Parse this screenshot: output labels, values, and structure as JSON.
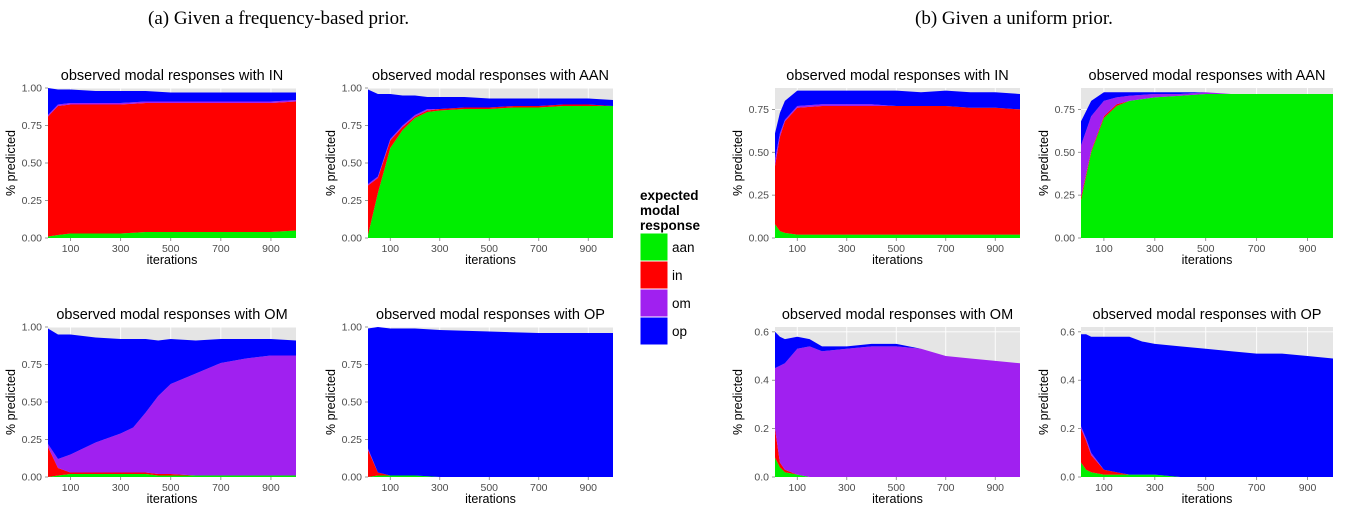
{
  "captions": {
    "a": "(a) Given a frequency-based prior.",
    "b": "(b) Given a uniform prior."
  },
  "legend": {
    "title_lines": [
      "expected",
      "modal",
      "response"
    ],
    "items": [
      {
        "label": "aan",
        "color": "#00ee00"
      },
      {
        "label": "in",
        "color": "#ff0000"
      },
      {
        "label": "om",
        "color": "#a020f0"
      },
      {
        "label": "op",
        "color": "#0000ff"
      }
    ]
  },
  "colors": {
    "panel_bg": "#e5e5e5",
    "grid": "#ffffff"
  },
  "chart_data": [
    {
      "type": "area",
      "title": "observed modal responses with IN",
      "xlabel": "iterations",
      "ylabel": "% predicted",
      "xlim": [
        10,
        1000
      ],
      "ylim": [
        0,
        1
      ],
      "xticks": [
        100,
        300,
        500,
        700,
        900
      ],
      "yticks": [
        "0.00",
        "0.25",
        "0.50",
        "0.75",
        "1.00"
      ],
      "x": [
        10,
        50,
        100,
        200,
        300,
        400,
        500,
        600,
        700,
        800,
        900,
        1000
      ],
      "series": [
        {
          "name": "aan",
          "values": [
            0.01,
            0.02,
            0.03,
            0.03,
            0.03,
            0.04,
            0.04,
            0.04,
            0.04,
            0.04,
            0.04,
            0.05
          ]
        },
        {
          "name": "in",
          "values": [
            0.8,
            0.86,
            0.86,
            0.86,
            0.86,
            0.86,
            0.86,
            0.86,
            0.86,
            0.86,
            0.86,
            0.86
          ]
        },
        {
          "name": "om",
          "values": [
            0.01,
            0.01,
            0.01,
            0.01,
            0.01,
            0.01,
            0.01,
            0.01,
            0.01,
            0.01,
            0.01,
            0.01
          ]
        },
        {
          "name": "op",
          "values": [
            0.18,
            0.1,
            0.09,
            0.08,
            0.08,
            0.07,
            0.06,
            0.06,
            0.06,
            0.06,
            0.06,
            0.05
          ]
        }
      ]
    },
    {
      "type": "area",
      "title": "observed modal responses with AAN",
      "xlabel": "iterations",
      "ylabel": "% predicted",
      "xlim": [
        10,
        1000
      ],
      "ylim": [
        0,
        1
      ],
      "xticks": [
        100,
        300,
        500,
        700,
        900
      ],
      "yticks": [
        "0.00",
        "0.25",
        "0.50",
        "0.75",
        "1.00"
      ],
      "x": [
        10,
        50,
        100,
        150,
        200,
        250,
        300,
        400,
        500,
        600,
        700,
        800,
        900,
        1000
      ],
      "series": [
        {
          "name": "aan",
          "values": [
            0.02,
            0.3,
            0.6,
            0.72,
            0.8,
            0.84,
            0.85,
            0.86,
            0.86,
            0.87,
            0.87,
            0.88,
            0.88,
            0.88
          ]
        },
        {
          "name": "in",
          "values": [
            0.33,
            0.1,
            0.05,
            0.02,
            0.01,
            0.01,
            0.01,
            0.01,
            0.01,
            0.01,
            0.01,
            0.01,
            0.01,
            0.0
          ]
        },
        {
          "name": "om",
          "values": [
            0.01,
            0.01,
            0.01,
            0.01,
            0.01,
            0.01,
            0.0,
            0.0,
            0.0,
            0.0,
            0.0,
            0.0,
            0.0,
            0.0
          ]
        },
        {
          "name": "op",
          "values": [
            0.63,
            0.55,
            0.3,
            0.2,
            0.13,
            0.08,
            0.08,
            0.07,
            0.06,
            0.05,
            0.05,
            0.04,
            0.04,
            0.04
          ]
        }
      ]
    },
    {
      "type": "area",
      "title": "observed modal responses with OM",
      "xlabel": "iterations",
      "ylabel": "% predicted",
      "xlim": [
        10,
        1000
      ],
      "ylim": [
        0,
        1
      ],
      "xticks": [
        100,
        300,
        500,
        700,
        900
      ],
      "yticks": [
        "0.00",
        "0.25",
        "0.50",
        "0.75",
        "1.00"
      ],
      "x": [
        10,
        50,
        100,
        200,
        300,
        350,
        400,
        450,
        500,
        600,
        700,
        800,
        900,
        1000
      ],
      "series": [
        {
          "name": "aan",
          "values": [
            0.0,
            0.01,
            0.02,
            0.02,
            0.02,
            0.02,
            0.02,
            0.01,
            0.01,
            0.01,
            0.01,
            0.01,
            0.01,
            0.01
          ]
        },
        {
          "name": "in",
          "values": [
            0.2,
            0.05,
            0.01,
            0.01,
            0.01,
            0.01,
            0.01,
            0.01,
            0.01,
            0.0,
            0.0,
            0.0,
            0.0,
            0.0
          ]
        },
        {
          "name": "om",
          "values": [
            0.02,
            0.06,
            0.12,
            0.2,
            0.26,
            0.3,
            0.4,
            0.52,
            0.6,
            0.68,
            0.75,
            0.78,
            0.8,
            0.8
          ]
        },
        {
          "name": "op",
          "values": [
            0.77,
            0.83,
            0.8,
            0.7,
            0.63,
            0.59,
            0.49,
            0.37,
            0.3,
            0.22,
            0.16,
            0.13,
            0.11,
            0.1
          ]
        }
      ]
    },
    {
      "type": "area",
      "title": "observed modal responses with OP",
      "xlabel": "iterations",
      "ylabel": "% predicted",
      "xlim": [
        10,
        1000
      ],
      "ylim": [
        0,
        1
      ],
      "xticks": [
        100,
        300,
        500,
        700,
        900
      ],
      "yticks": [
        "0.00",
        "0.25",
        "0.50",
        "0.75",
        "1.00"
      ],
      "x": [
        10,
        50,
        100,
        200,
        300,
        500,
        700,
        900,
        1000
      ],
      "series": [
        {
          "name": "aan",
          "values": [
            0.0,
            0.01,
            0.01,
            0.01,
            0.0,
            0.0,
            0.0,
            0.0,
            0.0
          ]
        },
        {
          "name": "in",
          "values": [
            0.18,
            0.02,
            0.0,
            0.0,
            0.0,
            0.0,
            0.0,
            0.0,
            0.0
          ]
        },
        {
          "name": "om",
          "values": [
            0.01,
            0.0,
            0.0,
            0.0,
            0.0,
            0.0,
            0.0,
            0.0,
            0.0
          ]
        },
        {
          "name": "op",
          "values": [
            0.8,
            0.97,
            0.98,
            0.98,
            0.98,
            0.97,
            0.96,
            0.96,
            0.96
          ]
        }
      ]
    },
    {
      "type": "area",
      "title": "observed modal responses with IN",
      "xlabel": "iterations",
      "ylabel": "% predicted",
      "xlim": [
        10,
        1000
      ],
      "ylim": [
        0,
        0.875
      ],
      "xticks": [
        100,
        300,
        500,
        700,
        900
      ],
      "yticks": [
        "0.00",
        "0.25",
        "0.50",
        "0.75"
      ],
      "x": [
        10,
        30,
        50,
        100,
        200,
        300,
        400,
        500,
        600,
        700,
        800,
        900,
        1000
      ],
      "series": [
        {
          "name": "aan",
          "values": [
            0.08,
            0.04,
            0.03,
            0.02,
            0.02,
            0.02,
            0.02,
            0.02,
            0.02,
            0.02,
            0.02,
            0.02,
            0.02
          ]
        },
        {
          "name": "in",
          "values": [
            0.34,
            0.55,
            0.65,
            0.74,
            0.75,
            0.75,
            0.75,
            0.75,
            0.75,
            0.75,
            0.74,
            0.74,
            0.73
          ]
        },
        {
          "name": "om",
          "values": [
            0.04,
            0.02,
            0.01,
            0.01,
            0.01,
            0.01,
            0.01,
            0.0,
            0.0,
            0.0,
            0.0,
            0.0,
            0.0
          ]
        },
        {
          "name": "op",
          "values": [
            0.15,
            0.12,
            0.11,
            0.09,
            0.08,
            0.08,
            0.08,
            0.09,
            0.08,
            0.09,
            0.09,
            0.09,
            0.09
          ]
        }
      ]
    },
    {
      "type": "area",
      "title": "observed modal responses with AAN",
      "xlabel": "iterations",
      "ylabel": "% predicted",
      "xlim": [
        10,
        1000
      ],
      "ylim": [
        0,
        0.875
      ],
      "xticks": [
        100,
        300,
        500,
        700,
        900
      ],
      "yticks": [
        "0.00",
        "0.25",
        "0.50",
        "0.75"
      ],
      "x": [
        10,
        50,
        100,
        150,
        200,
        300,
        400,
        500,
        600,
        700,
        800,
        900,
        1000
      ],
      "series": [
        {
          "name": "aan",
          "values": [
            0.22,
            0.5,
            0.7,
            0.77,
            0.8,
            0.82,
            0.83,
            0.84,
            0.84,
            0.84,
            0.84,
            0.84,
            0.84
          ]
        },
        {
          "name": "in",
          "values": [
            0.02,
            0.01,
            0.01,
            0.01,
            0.0,
            0.0,
            0.0,
            0.0,
            0.0,
            0.0,
            0.0,
            0.0,
            0.0
          ]
        },
        {
          "name": "om",
          "values": [
            0.3,
            0.2,
            0.09,
            0.04,
            0.03,
            0.02,
            0.01,
            0.01,
            0.0,
            0.0,
            0.0,
            0.0,
            0.0
          ]
        },
        {
          "name": "op",
          "values": [
            0.14,
            0.09,
            0.05,
            0.03,
            0.02,
            0.01,
            0.01,
            0.0,
            0.0,
            0.0,
            0.0,
            0.0,
            0.0
          ]
        }
      ]
    },
    {
      "type": "area",
      "title": "observed modal responses with OM",
      "xlabel": "iterations",
      "ylabel": "% predicted",
      "xlim": [
        10,
        1000
      ],
      "ylim": [
        0,
        0.62
      ],
      "xticks": [
        100,
        300,
        500,
        700,
        900
      ],
      "yticks": [
        "0.0",
        "0.2",
        "0.4",
        "0.6"
      ],
      "x": [
        10,
        30,
        50,
        100,
        150,
        200,
        300,
        400,
        500,
        600,
        700,
        800,
        900,
        1000
      ],
      "series": [
        {
          "name": "aan",
          "values": [
            0.08,
            0.04,
            0.02,
            0.01,
            0.0,
            0.0,
            0.0,
            0.0,
            0.0,
            0.0,
            0.0,
            0.0,
            0.0,
            0.0
          ]
        },
        {
          "name": "in",
          "values": [
            0.12,
            0.02,
            0.01,
            0.0,
            0.0,
            0.0,
            0.0,
            0.0,
            0.0,
            0.0,
            0.0,
            0.0,
            0.0,
            0.0
          ]
        },
        {
          "name": "om",
          "values": [
            0.25,
            0.4,
            0.44,
            0.52,
            0.54,
            0.52,
            0.53,
            0.54,
            0.54,
            0.53,
            0.5,
            0.49,
            0.48,
            0.47
          ]
        },
        {
          "name": "op",
          "values": [
            0.15,
            0.12,
            0.1,
            0.05,
            0.03,
            0.02,
            0.01,
            0.01,
            0.01,
            0.0,
            0.0,
            0.0,
            0.0,
            0.0
          ]
        }
      ]
    },
    {
      "type": "area",
      "title": "observed modal responses with OP",
      "xlabel": "iterations",
      "ylabel": "% predicted",
      "xlim": [
        10,
        1000
      ],
      "ylim": [
        0,
        0.62
      ],
      "xticks": [
        100,
        300,
        500,
        700,
        900
      ],
      "yticks": [
        "0.0",
        "0.2",
        "0.4",
        "0.6"
      ],
      "x": [
        10,
        30,
        50,
        100,
        150,
        200,
        250,
        300,
        400,
        500,
        600,
        700,
        800,
        900,
        1000
      ],
      "series": [
        {
          "name": "aan",
          "values": [
            0.06,
            0.03,
            0.02,
            0.01,
            0.01,
            0.01,
            0.01,
            0.01,
            0.0,
            0.0,
            0.0,
            0.0,
            0.0,
            0.0,
            0.0
          ]
        },
        {
          "name": "in",
          "values": [
            0.14,
            0.12,
            0.07,
            0.02,
            0.01,
            0.0,
            0.0,
            0.0,
            0.0,
            0.0,
            0.0,
            0.0,
            0.0,
            0.0,
            0.0
          ]
        },
        {
          "name": "om",
          "values": [
            0.01,
            0.01,
            0.01,
            0.0,
            0.0,
            0.0,
            0.0,
            0.0,
            0.0,
            0.0,
            0.0,
            0.0,
            0.0,
            0.0,
            0.0
          ]
        },
        {
          "name": "op",
          "values": [
            0.38,
            0.43,
            0.48,
            0.55,
            0.56,
            0.57,
            0.55,
            0.54,
            0.54,
            0.53,
            0.52,
            0.51,
            0.51,
            0.5,
            0.49
          ]
        }
      ]
    }
  ]
}
